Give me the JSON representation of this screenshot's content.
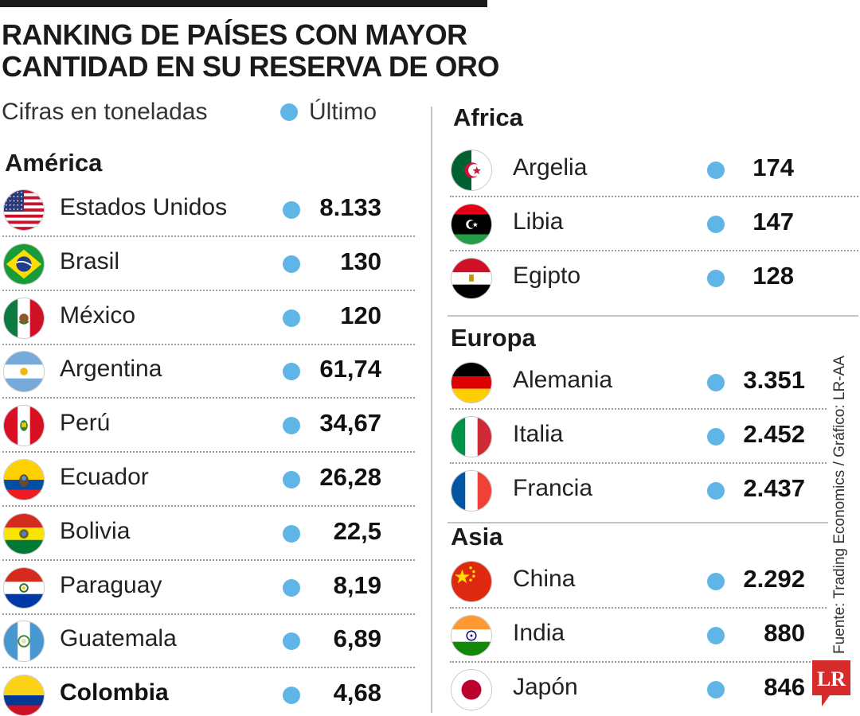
{
  "header": {
    "title_line1": "RANKING DE PAÍSES CON MAYOR",
    "title_line2": "CANTIDAD EN SU RESERVA DE ORO",
    "subtitle": "Cifras en toneladas",
    "legend_label": "Último",
    "legend_color": "#5eb5e6"
  },
  "chart_data": {
    "type": "table",
    "title": "RANKING DE PAÍSES CON MAYOR CANTIDAD EN SU RESERVA DE ORO",
    "unit": "Cifras en toneladas",
    "series": [
      {
        "name": "Último",
        "color": "#5eb5e6"
      }
    ],
    "regions": {
      "america": {
        "label": "América",
        "rows": [
          {
            "country": "Estados Unidos",
            "value": "8.133",
            "flag": "usa-flag-icon"
          },
          {
            "country": "Brasil",
            "value": "130",
            "flag": "brazil-flag-icon"
          },
          {
            "country": "México",
            "value": "120",
            "flag": "mexico-flag-icon"
          },
          {
            "country": "Argentina",
            "value": "61,74",
            "flag": "argentina-flag-icon"
          },
          {
            "country": "Perú",
            "value": "34,67",
            "flag": "peru-flag-icon"
          },
          {
            "country": "Ecuador",
            "value": "26,28",
            "flag": "ecuador-flag-icon"
          },
          {
            "country": "Bolivia",
            "value": "22,5",
            "flag": "bolivia-flag-icon"
          },
          {
            "country": "Paraguay",
            "value": "8,19",
            "flag": "paraguay-flag-icon"
          },
          {
            "country": "Guatemala",
            "value": "6,89",
            "flag": "guatemala-flag-icon"
          },
          {
            "country": "Colombia",
            "value": "4,68",
            "flag": "colombia-flag-icon"
          }
        ]
      },
      "africa": {
        "label": "Africa",
        "rows": [
          {
            "country": "Argelia",
            "value": "174",
            "flag": "algeria-flag-icon"
          },
          {
            "country": "Libia",
            "value": "147",
            "flag": "libya-flag-icon"
          },
          {
            "country": "Egipto",
            "value": "128",
            "flag": "egypt-flag-icon"
          }
        ]
      },
      "europa": {
        "label": "Europa",
        "rows": [
          {
            "country": "Alemania",
            "value": "3.351",
            "flag": "germany-flag-icon"
          },
          {
            "country": "Italia",
            "value": "2.452",
            "flag": "italy-flag-icon"
          },
          {
            "country": "Francia",
            "value": "2.437",
            "flag": "france-flag-icon"
          }
        ]
      },
      "asia": {
        "label": "Asia",
        "rows": [
          {
            "country": "China",
            "value": "2.292",
            "flag": "china-flag-icon"
          },
          {
            "country": "India",
            "value": "880",
            "flag": "india-flag-icon"
          },
          {
            "country": "Japón",
            "value": "846",
            "flag": "japan-flag-icon"
          }
        ]
      }
    }
  },
  "footer": {
    "source": "Fuente: Trading Economics / Gráfico: LR-AA",
    "logo_text": "LR"
  }
}
